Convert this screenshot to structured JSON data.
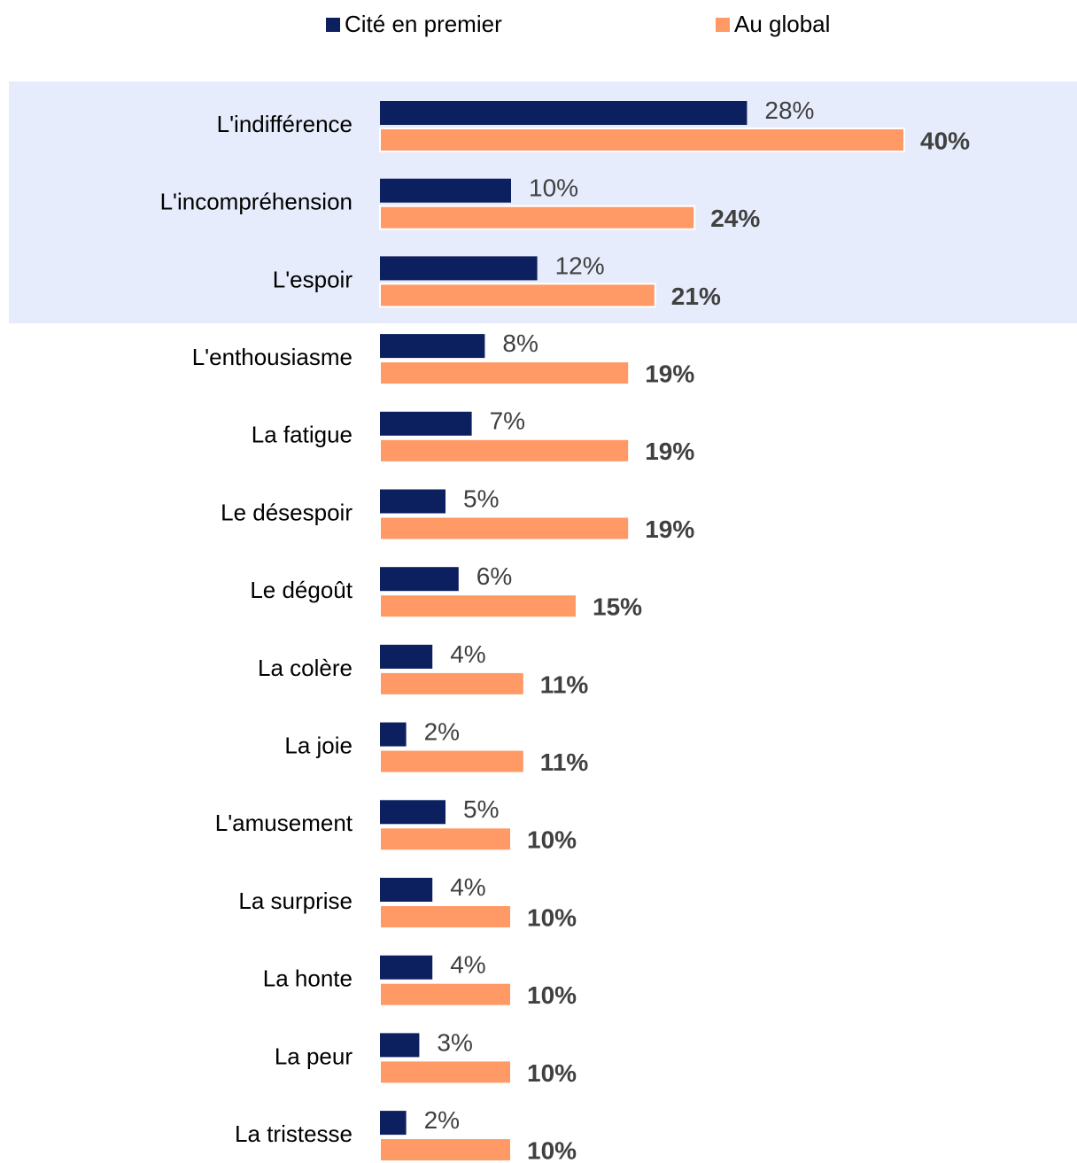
{
  "chart_data": {
    "type": "bar",
    "orientation": "horizontal",
    "categories": [
      "L'indifférence",
      "L'incompréhension",
      "L'espoir",
      "L'enthousiasme",
      "La fatigue",
      "Le désespoir",
      "Le dégoût",
      "La colère",
      "La joie",
      "L'amusement",
      "La surprise",
      "La honte",
      "La peur",
      "La tristesse"
    ],
    "series": [
      {
        "name": "Cité en premier",
        "color": "#0c1f5e",
        "values": [
          28,
          10,
          12,
          8,
          7,
          5,
          6,
          4,
          2,
          5,
          4,
          4,
          3,
          2
        ],
        "value_labels": [
          "28%",
          "10%",
          "12%",
          "8%",
          "7%",
          "5%",
          "6%",
          "4%",
          "2%",
          "5%",
          "4%",
          "4%",
          "3%",
          "2%"
        ]
      },
      {
        "name": "Au global",
        "color": "#ff9966",
        "values": [
          40,
          24,
          21,
          19,
          19,
          19,
          15,
          11,
          11,
          10,
          10,
          10,
          10,
          10
        ],
        "value_labels": [
          "40%",
          "24%",
          "21%",
          "19%",
          "19%",
          "19%",
          "15%",
          "11%",
          "11%",
          "10%",
          "10%",
          "10%",
          "10%",
          "10%"
        ]
      }
    ],
    "legend": "top"
  }
}
